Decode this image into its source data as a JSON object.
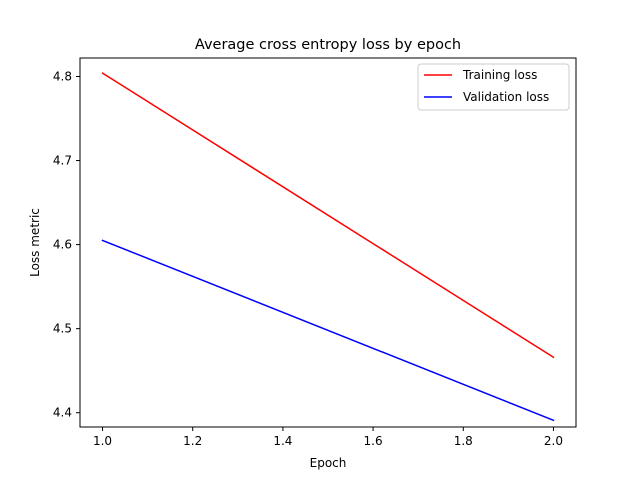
{
  "chart_data": {
    "type": "line",
    "title": "Average cross entropy loss by epoch",
    "xlabel": "Epoch",
    "ylabel": "Loss metric",
    "xlim": [
      0.95,
      2.05
    ],
    "ylim": [
      4.383,
      4.822
    ],
    "x_ticks": [
      1.0,
      1.2,
      1.4,
      1.6,
      1.8,
      2.0
    ],
    "x_tick_labels": [
      "1.0",
      "1.2",
      "1.4",
      "1.6",
      "1.8",
      "2.0"
    ],
    "y_ticks": [
      4.4,
      4.5,
      4.6,
      4.7,
      4.8
    ],
    "y_tick_labels": [
      "4.4",
      "4.5",
      "4.6",
      "4.7",
      "4.8"
    ],
    "grid": false,
    "legend": {
      "placement": "top-right"
    },
    "series": [
      {
        "name": "Training loss",
        "color": "#ff0000",
        "x": [
          1.0,
          2.0
        ],
        "y": [
          4.804,
          4.466
        ]
      },
      {
        "name": "Validation loss",
        "color": "#0000ff",
        "x": [
          1.0,
          2.0
        ],
        "y": [
          4.605,
          4.391
        ]
      }
    ]
  }
}
